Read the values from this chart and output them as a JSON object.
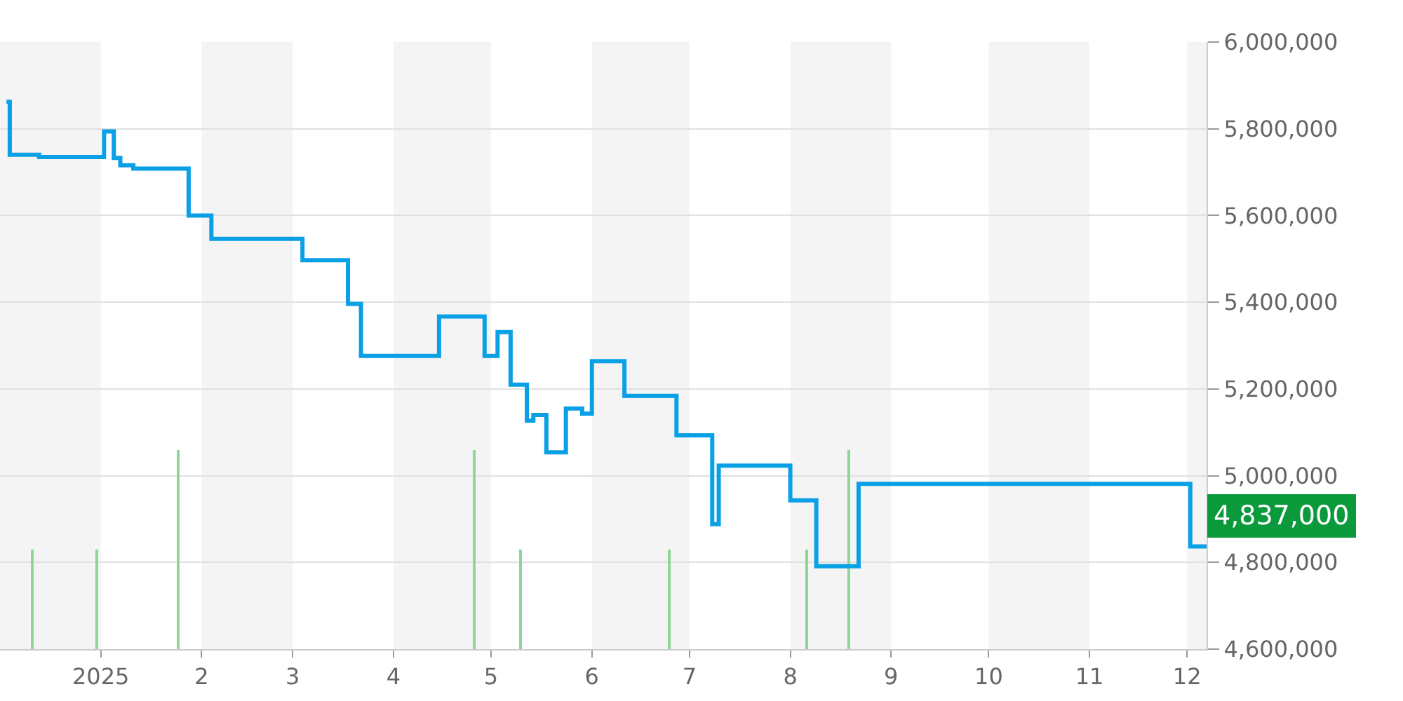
{
  "chart_data": {
    "type": "step",
    "xlim": [
      "2024-12-01",
      "2025-12-07"
    ],
    "xticks": [
      {
        "value": "2025-01-01",
        "label": "2025"
      },
      {
        "value": "2025-02-01",
        "label": "2"
      },
      {
        "value": "2025-03-01",
        "label": "3"
      },
      {
        "value": "2025-04-01",
        "label": "4"
      },
      {
        "value": "2025-05-01",
        "label": "5"
      },
      {
        "value": "2025-06-01",
        "label": "6"
      },
      {
        "value": "2025-07-01",
        "label": "7"
      },
      {
        "value": "2025-08-01",
        "label": "8"
      },
      {
        "value": "2025-09-01",
        "label": "9"
      },
      {
        "value": "2025-10-01",
        "label": "10"
      },
      {
        "value": "2025-11-01",
        "label": "11"
      },
      {
        "value": "2025-12-01",
        "label": "12"
      }
    ],
    "ylim": [
      4600000,
      6000000
    ],
    "yticks": [
      {
        "value": 4600000,
        "label": "4,600,000"
      },
      {
        "value": 4800000,
        "label": "4,800,000"
      },
      {
        "value": 5000000,
        "label": "5,000,000"
      },
      {
        "value": 5200000,
        "label": "5,200,000"
      },
      {
        "value": 5400000,
        "label": "5,400,000"
      },
      {
        "value": 5600000,
        "label": "5,600,000"
      },
      {
        "value": 5800000,
        "label": "5,800,000"
      },
      {
        "value": 6000000,
        "label": "6,000,000"
      }
    ],
    "grid": "y",
    "series": [
      {
        "type": "bar",
        "color": "#8fd694",
        "x": [
          "2024-12-11",
          "2024-12-31",
          "2025-01-25",
          "2025-04-26",
          "2025-05-10",
          "2025-06-25",
          "2025-08-06",
          "2025-08-19"
        ],
        "values": [
          4830000,
          4830000,
          5060000,
          5060000,
          4830000,
          4830000,
          4830000,
          5060000
        ]
      },
      {
        "color": "#0aa0e6",
        "x": [
          "2024-12-03",
          "2024-12-04",
          "2024-12-13",
          "2025-01-02",
          "2025-01-05",
          "2025-01-07",
          "2025-01-11",
          "2025-01-28",
          "2025-02-04",
          "2025-03-04",
          "2025-03-18",
          "2025-03-22",
          "2025-04-15",
          "2025-04-29",
          "2025-05-03",
          "2025-05-07",
          "2025-05-12",
          "2025-05-14",
          "2025-05-18",
          "2025-05-24",
          "2025-05-29",
          "2025-06-01",
          "2025-06-11",
          "2025-06-27",
          "2025-07-08",
          "2025-07-10",
          "2025-08-01",
          "2025-08-09",
          "2025-08-22",
          "2025-12-02",
          "2025-12-07"
        ],
        "values": [
          5862000,
          5740000,
          5735000,
          5794000,
          5733000,
          5716000,
          5708000,
          5600000,
          5546000,
          5497000,
          5396000,
          5276000,
          5367000,
          5276000,
          5331000,
          5210000,
          5127000,
          5140000,
          5054000,
          5155000,
          5143000,
          5264000,
          5184000,
          5093000,
          4888000,
          5023000,
          4943000,
          4791000,
          4981000,
          4837000,
          4837000
        ]
      }
    ],
    "bands": [
      {
        "axis": "x",
        "from": "2024-12-01",
        "to": "2025-01-01",
        "color": "#f4f4f4"
      },
      {
        "axis": "x",
        "from": "2025-02-01",
        "to": "2025-03-01",
        "color": "#f4f4f4"
      },
      {
        "axis": "x",
        "from": "2025-04-01",
        "to": "2025-05-01",
        "color": "#f4f4f4"
      },
      {
        "axis": "x",
        "from": "2025-06-01",
        "to": "2025-07-01",
        "color": "#f4f4f4"
      },
      {
        "axis": "x",
        "from": "2025-08-01",
        "to": "2025-09-01",
        "color": "#f4f4f4"
      },
      {
        "axis": "x",
        "from": "2025-10-01",
        "to": "2025-11-01",
        "color": "#f4f4f4"
      },
      {
        "axis": "x",
        "from": "2025-12-01",
        "to": "2025-12-07",
        "color": "#f4f4f4"
      }
    ],
    "annotations": [
      {
        "text": "4,837,000",
        "x": "2025-12-07",
        "y": 4837000
      }
    ]
  }
}
